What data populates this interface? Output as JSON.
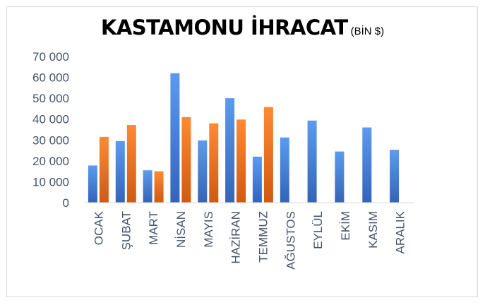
{
  "chart_data": {
    "type": "bar",
    "title": "KASTAMONU İHRACAT",
    "subtitle": "(BİN $)",
    "categories": [
      "OCAK",
      "ŞUBAT",
      "MART",
      "NİSAN",
      "MAYIS",
      "HAZİRAN",
      "TEMMUZ",
      "AĞUSTOS",
      "EYLÜL",
      "EKİM",
      "KASIM",
      "ARALIK"
    ],
    "series": [
      {
        "color": "#4a86d8",
        "values": [
          17800,
          29500,
          15500,
          62000,
          29800,
          50000,
          22000,
          31200,
          39300,
          24500,
          36000,
          25300
        ]
      },
      {
        "color": "#e8701e",
        "values": [
          31500,
          37200,
          15000,
          41000,
          38000,
          39800,
          45800,
          null,
          null,
          null,
          null,
          null
        ]
      }
    ],
    "ylim": [
      0,
      70000
    ],
    "yticks": [
      0,
      10000,
      20000,
      30000,
      40000,
      50000,
      60000,
      70000
    ],
    "ytick_labels": [
      "0",
      "10 000",
      "20 000",
      "30 000",
      "40 000",
      "50 000",
      "60 000",
      "70 000"
    ],
    "grid": false,
    "legend": "none"
  }
}
